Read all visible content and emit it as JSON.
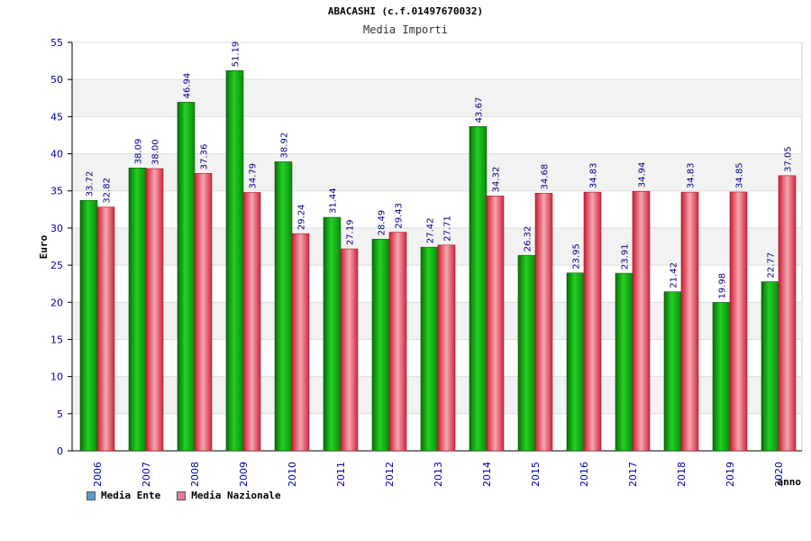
{
  "header": {
    "title": "ABACASHI (c.f.01497670032)",
    "subtitle": "Media Importi"
  },
  "legend": {
    "items": [
      {
        "label": "Media Ente",
        "color": "#5b9bd5"
      },
      {
        "label": "Media Nazionale",
        "color": "#e07aa0"
      }
    ]
  },
  "colors": {
    "ente_bar": "#11a811",
    "nazionale_bar": "#e8364e",
    "axis_text": "#0000aa",
    "label_text": "#000080"
  },
  "chart_data": {
    "type": "bar",
    "title": "Media Importi",
    "xlabel": "anno",
    "ylabel": "Euro",
    "ylim": [
      0,
      55
    ],
    "yticks": [
      0,
      5,
      10,
      15,
      20,
      25,
      30,
      35,
      40,
      45,
      50,
      55
    ],
    "grid": true,
    "legend_position": "bottom-left",
    "categories": [
      "2006",
      "2007",
      "2008",
      "2009",
      "2010",
      "2011",
      "2012",
      "2013",
      "2014",
      "2015",
      "2016",
      "2017",
      "2018",
      "2019",
      "2020"
    ],
    "series": [
      {
        "name": "Media Ente",
        "values": [
          33.72,
          38.09,
          46.94,
          51.19,
          38.92,
          31.44,
          28.49,
          27.42,
          43.67,
          26.32,
          23.95,
          23.91,
          21.42,
          19.98,
          22.77
        ],
        "labels": [
          "33.72",
          "38.09",
          "46.94",
          "51.19",
          "38.92",
          "31.44",
          "28.49",
          "27.42",
          "43.67",
          "26.32",
          "23.95",
          "23.91",
          "21.42",
          "19.98",
          "22.77"
        ]
      },
      {
        "name": "Media Nazionale",
        "values": [
          32.82,
          38.0,
          37.36,
          34.79,
          29.24,
          27.19,
          29.43,
          27.71,
          34.32,
          34.68,
          34.83,
          34.94,
          34.83,
          34.85,
          37.05
        ],
        "labels": [
          "32.82",
          "38.00",
          "37.36",
          "34.79",
          "29.24",
          "27.19",
          "29.43",
          "27.71",
          "34.32",
          "34.68",
          "34.83",
          "34.94",
          "34.83",
          "34.85",
          "37.05"
        ]
      }
    ]
  }
}
